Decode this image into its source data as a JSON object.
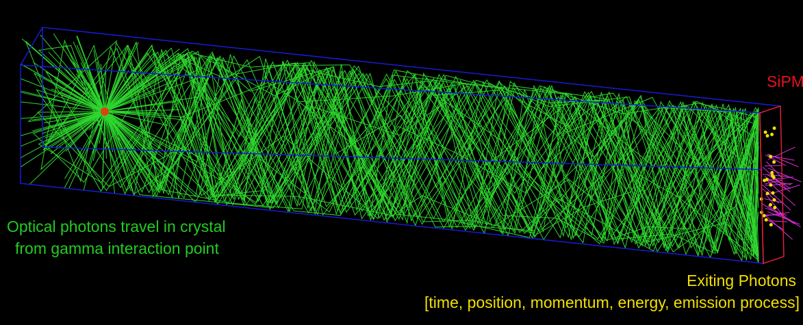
{
  "labels": {
    "sipm": "SiPM",
    "optical_photons": [
      "Optical photons travel in crystal",
      "from gamma interaction point"
    ],
    "exiting_photons": "Exiting Photons",
    "exiting_details": "[time, position, momentum, energy, emission process]"
  }
}
